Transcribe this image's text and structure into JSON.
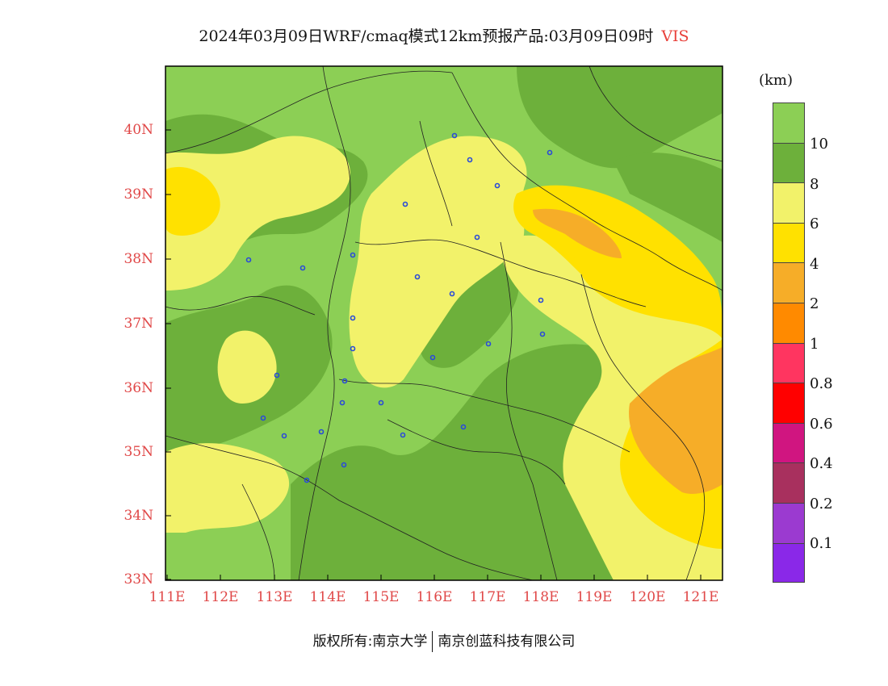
{
  "title": {
    "main": "2024年03月09日WRF/cmaq模式12km预报产品:03月09日09时",
    "variable": "VIS"
  },
  "map": {
    "lat_labels": [
      "40N",
      "39N",
      "38N",
      "37N",
      "36N",
      "35N",
      "34N",
      "33N"
    ],
    "lon_labels": [
      "111E",
      "112E",
      "113E",
      "114E",
      "115E",
      "116E",
      "117E",
      "118E",
      "119E",
      "120E",
      "121E"
    ],
    "lat_range": [
      33,
      41
    ],
    "lon_range": [
      111,
      121.4
    ]
  },
  "legend": {
    "unit": "(km)",
    "labels": [
      "10",
      "8",
      "6",
      "4",
      "2",
      "1",
      "0.8",
      "0.6",
      "0.4",
      "0.2",
      "0.1"
    ],
    "colors": [
      "#8ccf55",
      "#6db03b",
      "#f2f26a",
      "#ffe100",
      "#f6ad28",
      "#ff8a00",
      "#ff3560",
      "#ff0000",
      "#d01580",
      "#a8305e",
      "#9b3ad0",
      "#8a28e8"
    ]
  },
  "footer": {
    "left": "版权所有:南京大学",
    "right": "南京创蓝科技有限公司"
  }
}
